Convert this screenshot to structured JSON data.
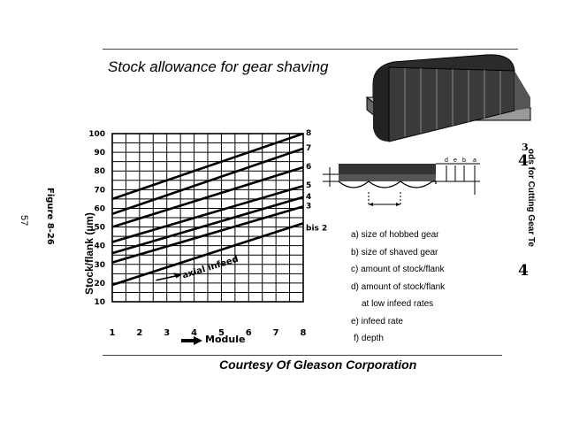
{
  "slide": {
    "title": "Stock allowance for gear shaving",
    "footer": "Courtesy Of Gleason Corporation",
    "page_number": "57",
    "figure_label": "Figure 8-26",
    "side_caption": "ods for Cutting Gear Te",
    "side_numbers": [
      "3",
      "4",
      "4"
    ]
  },
  "legend": {
    "items": [
      "a) size of hobbed gear",
      "b) size of shaved gear",
      "c) amount of stock/flank",
      "d) amount of stock/flank",
      "at low infeed rates",
      "e) infeed rate",
      "f) depth"
    ]
  },
  "section_labels": [
    "d",
    "e",
    "b",
    "a"
  ],
  "chart_data": {
    "type": "line",
    "xlabel": "Module",
    "ylabel": "Stock/flank (µm)",
    "xlim": [
      1,
      8
    ],
    "ylim": [
      10,
      100
    ],
    "x_ticks": [
      "1",
      "2",
      "3",
      "4",
      "5",
      "6",
      "7",
      "8"
    ],
    "y_ticks": [
      "10",
      "20",
      "30",
      "40",
      "50",
      "60",
      "70",
      "80",
      "90",
      "100"
    ],
    "grid": true,
    "annotation": "axial infeed",
    "series": [
      {
        "name": "8",
        "x": [
          1,
          8
        ],
        "y": [
          65,
          100
        ]
      },
      {
        "name": "7",
        "x": [
          1,
          8
        ],
        "y": [
          57,
          92
        ]
      },
      {
        "name": "6",
        "x": [
          1,
          8
        ],
        "y": [
          50,
          82
        ]
      },
      {
        "name": "5",
        "x": [
          1,
          8
        ],
        "y": [
          42,
          72
        ]
      },
      {
        "name": "4",
        "x": [
          1,
          8
        ],
        "y": [
          36,
          66
        ]
      },
      {
        "name": "3",
        "x": [
          1,
          8
        ],
        "y": [
          31,
          61
        ]
      },
      {
        "name": "bis 2",
        "x": [
          1,
          8
        ],
        "y": [
          19,
          52
        ]
      }
    ]
  }
}
